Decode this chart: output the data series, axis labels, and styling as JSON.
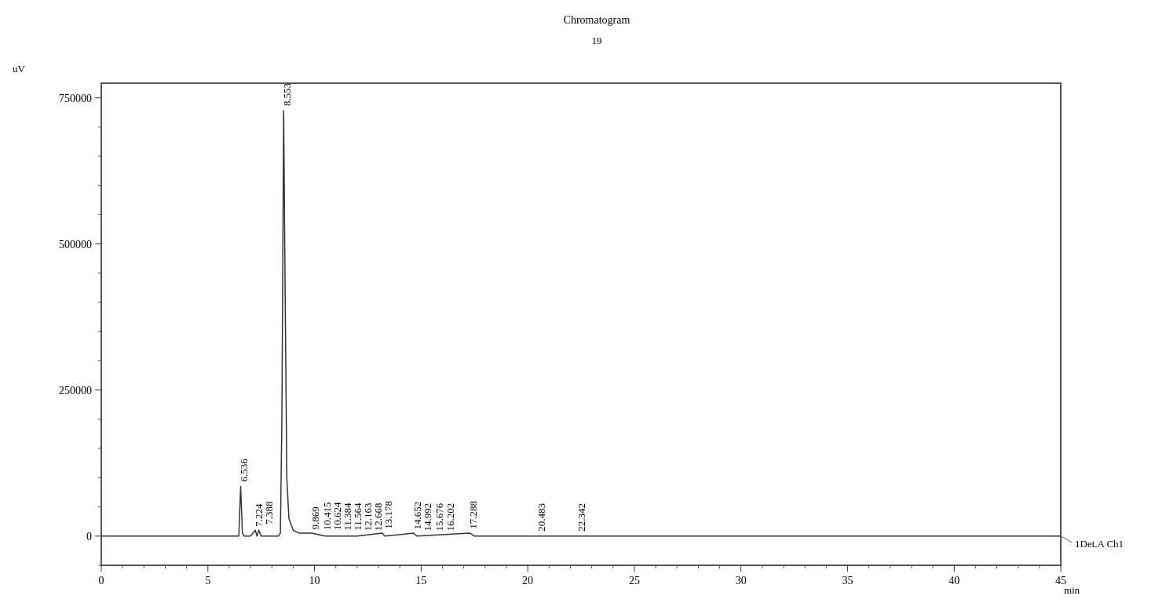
{
  "chart_data": {
    "type": "line",
    "title": "Chromatogram",
    "subtitle": "19",
    "xlabel": "min",
    "ylabel": "uV",
    "xlim": [
      0,
      45
    ],
    "xticks": [
      0,
      5,
      10,
      15,
      20,
      25,
      30,
      35,
      40,
      45
    ],
    "ylim": [
      -50000,
      775000
    ],
    "yticks": [
      0,
      250000,
      500000,
      750000
    ],
    "grid": false,
    "marker": "none",
    "line_style": "solid",
    "series": [
      {
        "name": "1Det.A Ch1",
        "color": "#333333",
        "x": [
          0,
          6.3,
          6.45,
          6.536,
          6.62,
          6.7,
          7.0,
          7.224,
          7.3,
          7.388,
          7.5,
          8.0,
          8.3,
          8.4,
          8.47,
          8.553,
          8.62,
          8.7,
          8.8,
          9.0,
          9.3,
          9.869,
          10.5,
          11.5,
          12.0,
          13.178,
          13.3,
          14.652,
          14.8,
          17.288,
          17.5,
          45
        ],
        "values": [
          0,
          0,
          0,
          85000,
          5000,
          0,
          0,
          10000,
          0,
          10000,
          0,
          0,
          0,
          5000,
          200000,
          728000,
          430000,
          100000,
          30000,
          10000,
          5000,
          5000,
          0,
          0,
          0,
          5000,
          0,
          5000,
          0,
          5000,
          0,
          0
        ]
      }
    ],
    "annotations": [
      {
        "text": "6.536",
        "x": 6.536,
        "y": 85000
      },
      {
        "text": "7.224",
        "x": 7.224,
        "y": 8000
      },
      {
        "text": "7.388",
        "x": 7.388,
        "y": 12000
      },
      {
        "text": "8.553",
        "x": 8.553,
        "y": 728000
      },
      {
        "text": "9.869",
        "x": 9.869,
        "y": 3000
      },
      {
        "text": "10.415",
        "x": 10.415,
        "y": 2000
      },
      {
        "text": "10.624",
        "x": 10.624,
        "y": 2000
      },
      {
        "text": "11.384",
        "x": 11.384,
        "y": 1500
      },
      {
        "text": "11.564",
        "x": 11.564,
        "y": 1500
      },
      {
        "text": "12.163",
        "x": 12.163,
        "y": 800
      },
      {
        "text": "12.668",
        "x": 12.668,
        "y": 800
      },
      {
        "text": "13.178",
        "x": 13.178,
        "y": 4000
      },
      {
        "text": "14.652",
        "x": 14.652,
        "y": 3000
      },
      {
        "text": "14.992",
        "x": 14.992,
        "y": 300
      },
      {
        "text": "15.676",
        "x": 15.676,
        "y": 300
      },
      {
        "text": "16.202",
        "x": 16.202,
        "y": 300
      },
      {
        "text": "17.288",
        "x": 17.288,
        "y": 4000
      },
      {
        "text": "20.483",
        "x": 20.483,
        "y": 0
      },
      {
        "text": "22.342",
        "x": 22.342,
        "y": 0
      }
    ]
  }
}
